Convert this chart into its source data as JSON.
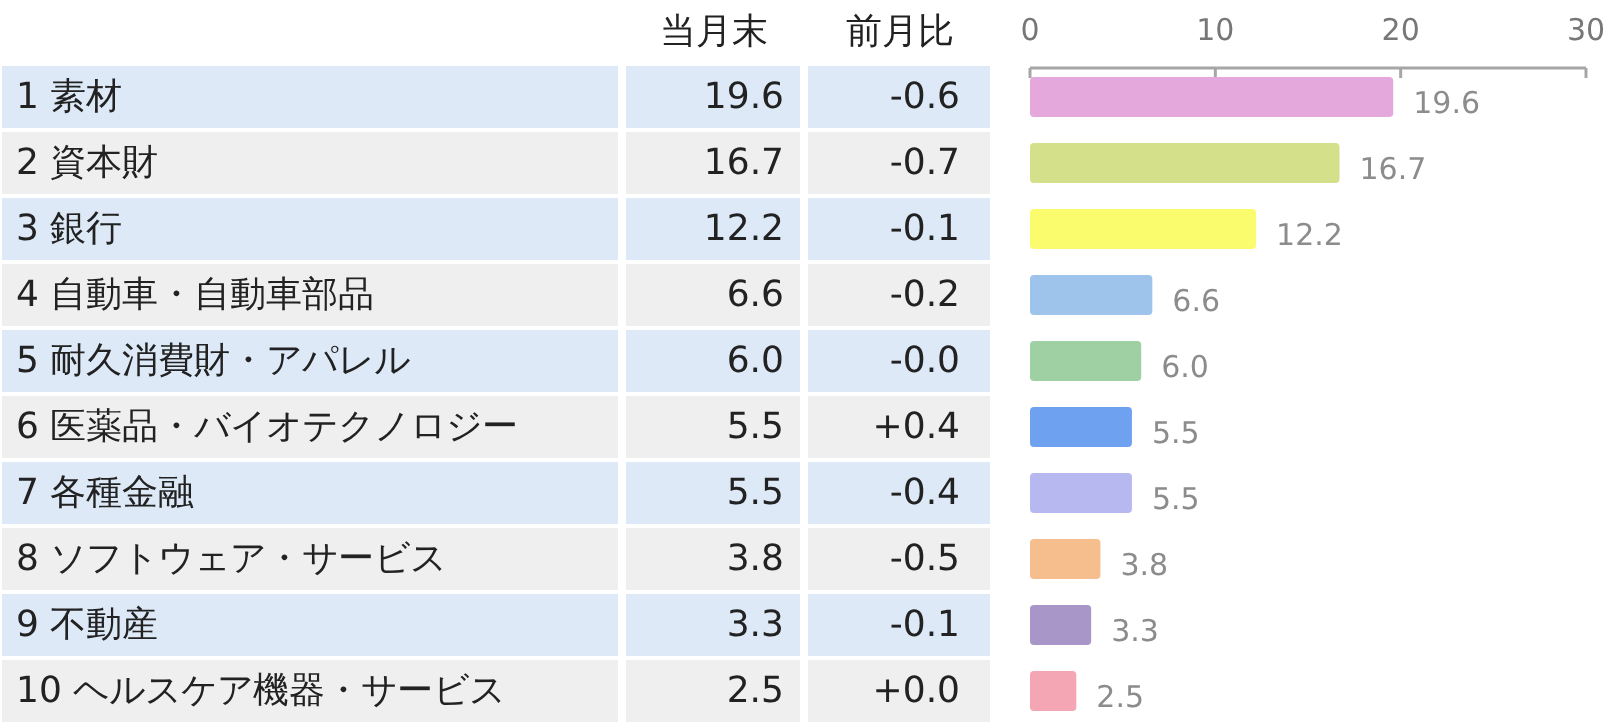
{
  "chart_data": {
    "type": "bar",
    "orientation": "horizontal",
    "categories": [
      "1 素材",
      "2 資本財",
      "3 銀行",
      "4 自動車・自動車部品",
      "5 耐久消費財・アパレル",
      "6 医薬品・バイオテクノロジー",
      "7 各種金融",
      "8 ソフトウェア・サービス",
      "9 不動産",
      "10 ヘルスケア機器・サービス"
    ],
    "values": [
      19.6,
      16.7,
      12.2,
      6.6,
      6.0,
      5.5,
      5.5,
      3.8,
      3.3,
      2.5
    ],
    "value_labels": [
      "19.6",
      "16.7",
      "12.2",
      "6.6",
      "6.0",
      "5.5",
      "5.5",
      "3.8",
      "3.3",
      "2.5"
    ],
    "colors": [
      "#e4a8dc",
      "#d4e08a",
      "#fbfb6e",
      "#9fc4ec",
      "#9fd0a4",
      "#6ea2f0",
      "#b8b8f0",
      "#f6be8c",
      "#a996c8",
      "#f4a6b4"
    ],
    "x2lim": [
      0,
      30
    ],
    "x2ticks": [
      0,
      10,
      20,
      30
    ],
    "annotations": [
      "当月末",
      "前月比",
      "-0.6",
      "-0.7",
      "-0.1",
      "-0.2",
      "-0.0",
      "+0.4",
      "-0.4",
      "-0.5",
      "-0.1",
      "+0.0"
    ]
  }
}
